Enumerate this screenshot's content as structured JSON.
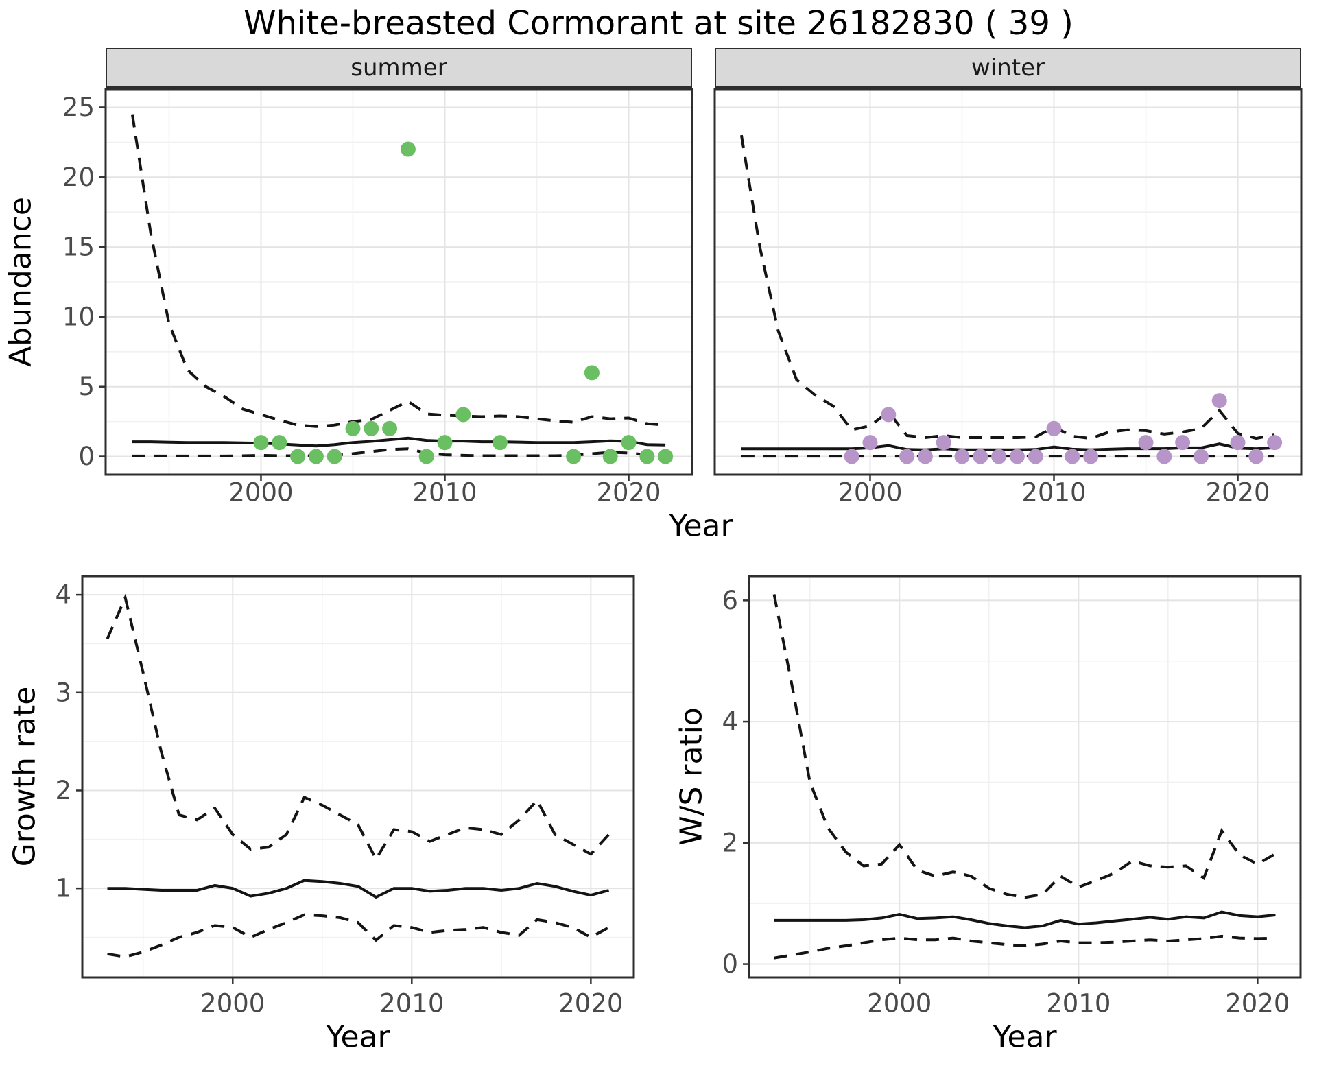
{
  "title": "White-breasted Cormorant at site 26182830 ( 39 )",
  "colors": {
    "summer_point": "#6abf62",
    "winter_point": "#b795c8",
    "line": "#141414",
    "grid_major": "#e4e4e4",
    "grid_minor": "#f1f1f1",
    "panel_bg": "#ffffff",
    "panel_border": "#2e2e2e",
    "strip_bg": "#d9d9d9",
    "axis_text": "#4a4a4a",
    "tick_mark": "#333333"
  },
  "chart_data": [
    {
      "type": "line",
      "facet": "summer",
      "xlabel": "Year",
      "ylabel": "Abundance",
      "x_ticks": [
        2000,
        2010,
        2020
      ],
      "y_ticks": [
        0,
        5,
        10,
        15,
        20,
        25
      ],
      "xlim": [
        1991.55,
        2023.45
      ],
      "ylim": [
        -1.3,
        26.3
      ],
      "x": [
        1993,
        1994,
        1995,
        1996,
        1997,
        1998,
        1999,
        2000,
        2001,
        2002,
        2003,
        2004,
        2005,
        2006,
        2007,
        2008,
        2009,
        2010,
        2011,
        2012,
        2013,
        2014,
        2015,
        2016,
        2017,
        2018,
        2019,
        2020,
        2021,
        2022
      ],
      "series": [
        {
          "name": "upper_ci",
          "style": "dashed",
          "values": [
            24.5,
            16,
            9.5,
            6.2,
            5.0,
            4.3,
            3.4,
            3.0,
            2.6,
            2.25,
            2.15,
            2.25,
            2.5,
            2.65,
            3.3,
            3.95,
            3.05,
            2.95,
            2.9,
            2.85,
            2.9,
            2.85,
            2.7,
            2.55,
            2.45,
            2.85,
            2.7,
            2.75,
            2.35,
            2.25
          ]
        },
        {
          "name": "median",
          "style": "solid",
          "values": [
            1.05,
            1.05,
            1.02,
            1.0,
            1.0,
            1.0,
            0.97,
            0.95,
            0.9,
            0.82,
            0.75,
            0.85,
            1.0,
            1.08,
            1.2,
            1.32,
            1.15,
            1.1,
            1.1,
            1.05,
            1.05,
            1.03,
            1.0,
            1.0,
            1.0,
            1.05,
            1.12,
            1.08,
            0.85,
            0.82
          ]
        },
        {
          "name": "lower_ci",
          "style": "dashed",
          "values": [
            0.03,
            0.03,
            0.03,
            0.03,
            0.03,
            0.03,
            0.05,
            0.08,
            0.05,
            0.05,
            0.05,
            0.1,
            0.2,
            0.35,
            0.5,
            0.55,
            0.25,
            0.12,
            0.08,
            0.05,
            0.05,
            0.05,
            0.05,
            0.05,
            0.08,
            0.2,
            0.3,
            0.25,
            0.12,
            0.08
          ]
        }
      ],
      "points": {
        "name": "observed_abundance_summer",
        "color_key": "summer_point",
        "xy": [
          [
            2000,
            1
          ],
          [
            2001,
            1
          ],
          [
            2002,
            0
          ],
          [
            2003,
            0
          ],
          [
            2004,
            0
          ],
          [
            2005,
            2
          ],
          [
            2006,
            2
          ],
          [
            2007,
            2
          ],
          [
            2008,
            22
          ],
          [
            2009,
            0
          ],
          [
            2010,
            1
          ],
          [
            2011,
            3
          ],
          [
            2013,
            1
          ],
          [
            2017,
            0
          ],
          [
            2018,
            6
          ],
          [
            2019,
            0
          ],
          [
            2020,
            1
          ],
          [
            2021,
            0
          ],
          [
            2022,
            0
          ]
        ]
      }
    },
    {
      "type": "line",
      "facet": "winter",
      "xlabel": "Year",
      "ylabel": "Abundance",
      "x_ticks": [
        2000,
        2010,
        2020
      ],
      "y_ticks": [
        0,
        5,
        10,
        15,
        20,
        25
      ],
      "xlim": [
        1991.55,
        2023.45
      ],
      "ylim": [
        -1.3,
        26.3
      ],
      "x": [
        1993,
        1994,
        1995,
        1996,
        1997,
        1998,
        1999,
        2000,
        2001,
        2002,
        2003,
        2004,
        2005,
        2006,
        2007,
        2008,
        2009,
        2010,
        2011,
        2012,
        2013,
        2014,
        2015,
        2016,
        2017,
        2018,
        2019,
        2020,
        2021,
        2022
      ],
      "series": [
        {
          "name": "upper_ci",
          "style": "dashed",
          "values": [
            23,
            15,
            9,
            5.5,
            4.4,
            3.6,
            1.9,
            2.2,
            3.2,
            1.5,
            1.35,
            1.5,
            1.35,
            1.35,
            1.35,
            1.35,
            1.4,
            2.1,
            1.45,
            1.3,
            1.75,
            1.9,
            1.85,
            1.6,
            1.75,
            2.0,
            3.3,
            1.65,
            1.3,
            1.55
          ]
        },
        {
          "name": "median",
          "style": "solid",
          "values": [
            0.55,
            0.55,
            0.55,
            0.55,
            0.55,
            0.55,
            0.55,
            0.62,
            0.78,
            0.5,
            0.48,
            0.55,
            0.48,
            0.48,
            0.48,
            0.48,
            0.5,
            0.68,
            0.52,
            0.48,
            0.52,
            0.56,
            0.56,
            0.56,
            0.62,
            0.62,
            0.9,
            0.6,
            0.55,
            0.62
          ]
        },
        {
          "name": "lower_ci",
          "style": "dashed",
          "values": [
            0.02,
            0.02,
            0.02,
            0.02,
            0.02,
            0.02,
            0.02,
            0.02,
            0.02,
            0.02,
            0.02,
            0.02,
            0.02,
            0.02,
            0.02,
            0.02,
            0.02,
            0.02,
            0.02,
            0.02,
            0.02,
            0.02,
            0.02,
            0.02,
            0.02,
            0.02,
            0.02,
            0.02,
            0.02,
            0.02
          ]
        }
      ],
      "points": {
        "name": "observed_abundance_winter",
        "color_key": "winter_point",
        "xy": [
          [
            1999,
            0
          ],
          [
            2000,
            1
          ],
          [
            2001,
            3
          ],
          [
            2002,
            0
          ],
          [
            2003,
            0
          ],
          [
            2004,
            1
          ],
          [
            2005,
            0
          ],
          [
            2006,
            0
          ],
          [
            2007,
            0
          ],
          [
            2008,
            0
          ],
          [
            2009,
            0
          ],
          [
            2010,
            2
          ],
          [
            2011,
            0
          ],
          [
            2012,
            0
          ],
          [
            2015,
            1
          ],
          [
            2016,
            0
          ],
          [
            2017,
            1
          ],
          [
            2018,
            0
          ],
          [
            2019,
            4
          ],
          [
            2020,
            1
          ],
          [
            2021,
            0
          ],
          [
            2022,
            1
          ]
        ]
      }
    },
    {
      "type": "line",
      "facet": "",
      "xlabel": "Year",
      "ylabel": "Growth rate",
      "x_ticks": [
        2000,
        2010,
        2020
      ],
      "y_ticks": [
        1,
        2,
        3,
        4
      ],
      "xlim": [
        1991.6,
        2022.4
      ],
      "ylim": [
        0.09,
        4.19
      ],
      "x": [
        1993,
        1994,
        1995,
        1996,
        1997,
        1998,
        1999,
        2000,
        2001,
        2002,
        2003,
        2004,
        2005,
        2006,
        2007,
        2008,
        2009,
        2010,
        2011,
        2012,
        2013,
        2014,
        2015,
        2016,
        2017,
        2018,
        2019,
        2020,
        2021
      ],
      "series": [
        {
          "name": "upper_ci",
          "style": "dashed",
          "values": [
            3.55,
            3.97,
            3.2,
            2.4,
            1.75,
            1.7,
            1.82,
            1.55,
            1.4,
            1.42,
            1.55,
            1.93,
            1.85,
            1.75,
            1.65,
            1.3,
            1.6,
            1.58,
            1.48,
            1.55,
            1.62,
            1.6,
            1.55,
            1.7,
            1.9,
            1.55,
            1.45,
            1.35,
            1.55
          ]
        },
        {
          "name": "median",
          "style": "solid",
          "values": [
            1.0,
            1.0,
            0.99,
            0.98,
            0.98,
            0.98,
            1.03,
            1.0,
            0.92,
            0.95,
            1.0,
            1.08,
            1.07,
            1.05,
            1.02,
            0.91,
            1.0,
            1.0,
            0.97,
            0.98,
            1.0,
            1.0,
            0.98,
            1.0,
            1.05,
            1.02,
            0.97,
            0.93,
            0.98
          ]
        },
        {
          "name": "lower_ci",
          "style": "dashed",
          "values": [
            0.33,
            0.3,
            0.35,
            0.42,
            0.5,
            0.55,
            0.62,
            0.6,
            0.5,
            0.58,
            0.65,
            0.73,
            0.72,
            0.7,
            0.65,
            0.47,
            0.62,
            0.6,
            0.55,
            0.57,
            0.58,
            0.6,
            0.55,
            0.52,
            0.68,
            0.65,
            0.6,
            0.5,
            0.6
          ]
        }
      ],
      "points": null
    },
    {
      "type": "line",
      "facet": "",
      "xlabel": "Year",
      "ylabel": "W/S ratio",
      "x_ticks": [
        2000,
        2010,
        2020
      ],
      "y_ticks": [
        0,
        2,
        4,
        6
      ],
      "xlim": [
        1991.6,
        2022.4
      ],
      "ylim": [
        -0.22,
        6.4
      ],
      "x": [
        1993,
        1994,
        1995,
        1996,
        1997,
        1998,
        1999,
        2000,
        2001,
        2002,
        2003,
        2004,
        2005,
        2006,
        2007,
        2008,
        2009,
        2010,
        2011,
        2012,
        2013,
        2014,
        2015,
        2016,
        2017,
        2018,
        2019,
        2020,
        2021
      ],
      "series": [
        {
          "name": "upper_ci",
          "style": "dashed",
          "values": [
            6.1,
            4.6,
            3.0,
            2.25,
            1.85,
            1.62,
            1.65,
            1.97,
            1.55,
            1.45,
            1.52,
            1.45,
            1.25,
            1.15,
            1.1,
            1.15,
            1.45,
            1.27,
            1.38,
            1.5,
            1.7,
            1.62,
            1.6,
            1.62,
            1.42,
            2.2,
            1.8,
            1.65,
            1.82
          ]
        },
        {
          "name": "median",
          "style": "solid",
          "values": [
            0.72,
            0.72,
            0.72,
            0.72,
            0.72,
            0.73,
            0.76,
            0.82,
            0.75,
            0.76,
            0.78,
            0.73,
            0.67,
            0.63,
            0.6,
            0.63,
            0.72,
            0.66,
            0.68,
            0.71,
            0.74,
            0.77,
            0.74,
            0.78,
            0.76,
            0.86,
            0.8,
            0.78,
            0.81
          ]
        },
        {
          "name": "lower_ci",
          "style": "dashed",
          "values": [
            0.1,
            0.15,
            0.2,
            0.26,
            0.3,
            0.35,
            0.4,
            0.43,
            0.4,
            0.4,
            0.43,
            0.38,
            0.35,
            0.32,
            0.3,
            0.33,
            0.38,
            0.35,
            0.35,
            0.36,
            0.38,
            0.4,
            0.38,
            0.4,
            0.42,
            0.46,
            0.43,
            0.42,
            0.43
          ]
        }
      ],
      "points": null
    }
  ]
}
